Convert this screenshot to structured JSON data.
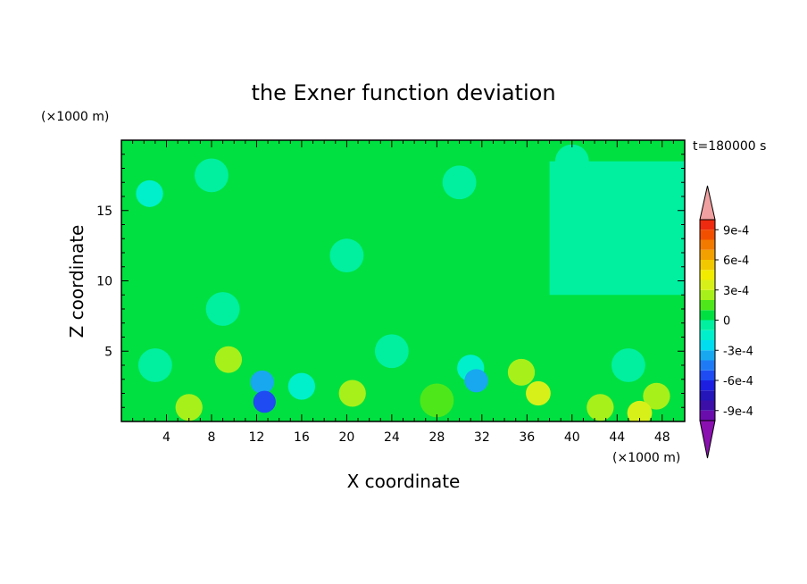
{
  "chart_data": {
    "type": "heatmap",
    "title": "the Exner function deviation",
    "xlabel": "X coordinate",
    "ylabel": "Z coordinate",
    "x_unit": "(×1000 m)",
    "y_unit": "(×1000 m)",
    "time_label": "t=180000 s",
    "xlim": [
      0,
      50
    ],
    "ylim": [
      0,
      20
    ],
    "x_ticks": [
      4,
      8,
      12,
      16,
      20,
      24,
      28,
      32,
      36,
      40,
      44,
      48
    ],
    "y_ticks": [
      5,
      10,
      15
    ],
    "colorbar": {
      "tick_labels": [
        "9e-4",
        "6e-4",
        "3e-4",
        "0",
        "-3e-4",
        "-6e-4",
        "-9e-4"
      ],
      "tick_values": [
        0.0009,
        0.0006,
        0.0003,
        0,
        -0.0003,
        -0.0006,
        -0.0009
      ],
      "levels": [
        -0.001,
        -0.0009,
        -0.0008,
        -0.0007,
        -0.0006,
        -0.0005,
        -0.0004,
        -0.0003,
        -0.0002,
        -0.0001,
        0,
        0.0001,
        0.0002,
        0.0003,
        0.0004,
        0.0005,
        0.0006,
        0.0007,
        0.0008,
        0.0009,
        0.001
      ],
      "colors": [
        "#6a0dad",
        "#3b0fa8",
        "#2416b8",
        "#1c1fe0",
        "#1e4cf2",
        "#1f7bf5",
        "#18a8f0",
        "#00dcf0",
        "#00f0cc",
        "#00f0a0",
        "#00e040",
        "#4ee81a",
        "#a8f01a",
        "#d8f01a",
        "#f2ec00",
        "#f2c800",
        "#f2a000",
        "#f27a00",
        "#f25000",
        "#ee2a10"
      ],
      "over_color": "#f0a0a0",
      "under_color": "#8a10b0"
    },
    "features": [
      {
        "x": 12.7,
        "z": 1.4,
        "value": -0.0006
      },
      {
        "x": 12.5,
        "z": 2.8,
        "value": -0.0004
      },
      {
        "x": 31.5,
        "z": 2.9,
        "value": -0.0004
      },
      {
        "x": 31.0,
        "z": 3.8,
        "value": -0.0002
      },
      {
        "x": 9.5,
        "z": 4.4,
        "value": 0.0002
      },
      {
        "x": 37.0,
        "z": 2.0,
        "value": 0.0003
      },
      {
        "x": 35.5,
        "z": 3.5,
        "value": 0.0002
      },
      {
        "x": 20.5,
        "z": 2.0,
        "value": 0.0002
      },
      {
        "x": 6.0,
        "z": 1.0,
        "value": 0.0002
      },
      {
        "x": 42.5,
        "z": 1.0,
        "value": 0.0002
      },
      {
        "x": 47.5,
        "z": 1.8,
        "value": 0.0002
      },
      {
        "x": 46.0,
        "z": 0.6,
        "value": 0.0003
      },
      {
        "x": 28.0,
        "z": 1.5,
        "value": 0.0001
      },
      {
        "x": 3.0,
        "z": 4.0,
        "value": -0.0001
      },
      {
        "x": 16.0,
        "z": 2.5,
        "value": -0.0002
      },
      {
        "x": 24.0,
        "z": 5.0,
        "value": -0.0001
      },
      {
        "x": 45.0,
        "z": 4.0,
        "value": -0.0001
      },
      {
        "x": 42.0,
        "z": 13.2,
        "value": -0.0001
      },
      {
        "x": 40.0,
        "z": 18.5,
        "value": -0.0001
      },
      {
        "x": 30.0,
        "z": 17.0,
        "value": -0.0001
      },
      {
        "x": 8.0,
        "z": 17.5,
        "value": -0.0001
      },
      {
        "x": 2.5,
        "z": 16.2,
        "value": -0.0002
      },
      {
        "x": 20.0,
        "z": 11.8,
        "value": -0.0001
      },
      {
        "x": 9.0,
        "z": 8.0,
        "value": -0.0001
      },
      {
        "x": 47.0,
        "z": 11.0,
        "value": -0.0001
      }
    ]
  }
}
